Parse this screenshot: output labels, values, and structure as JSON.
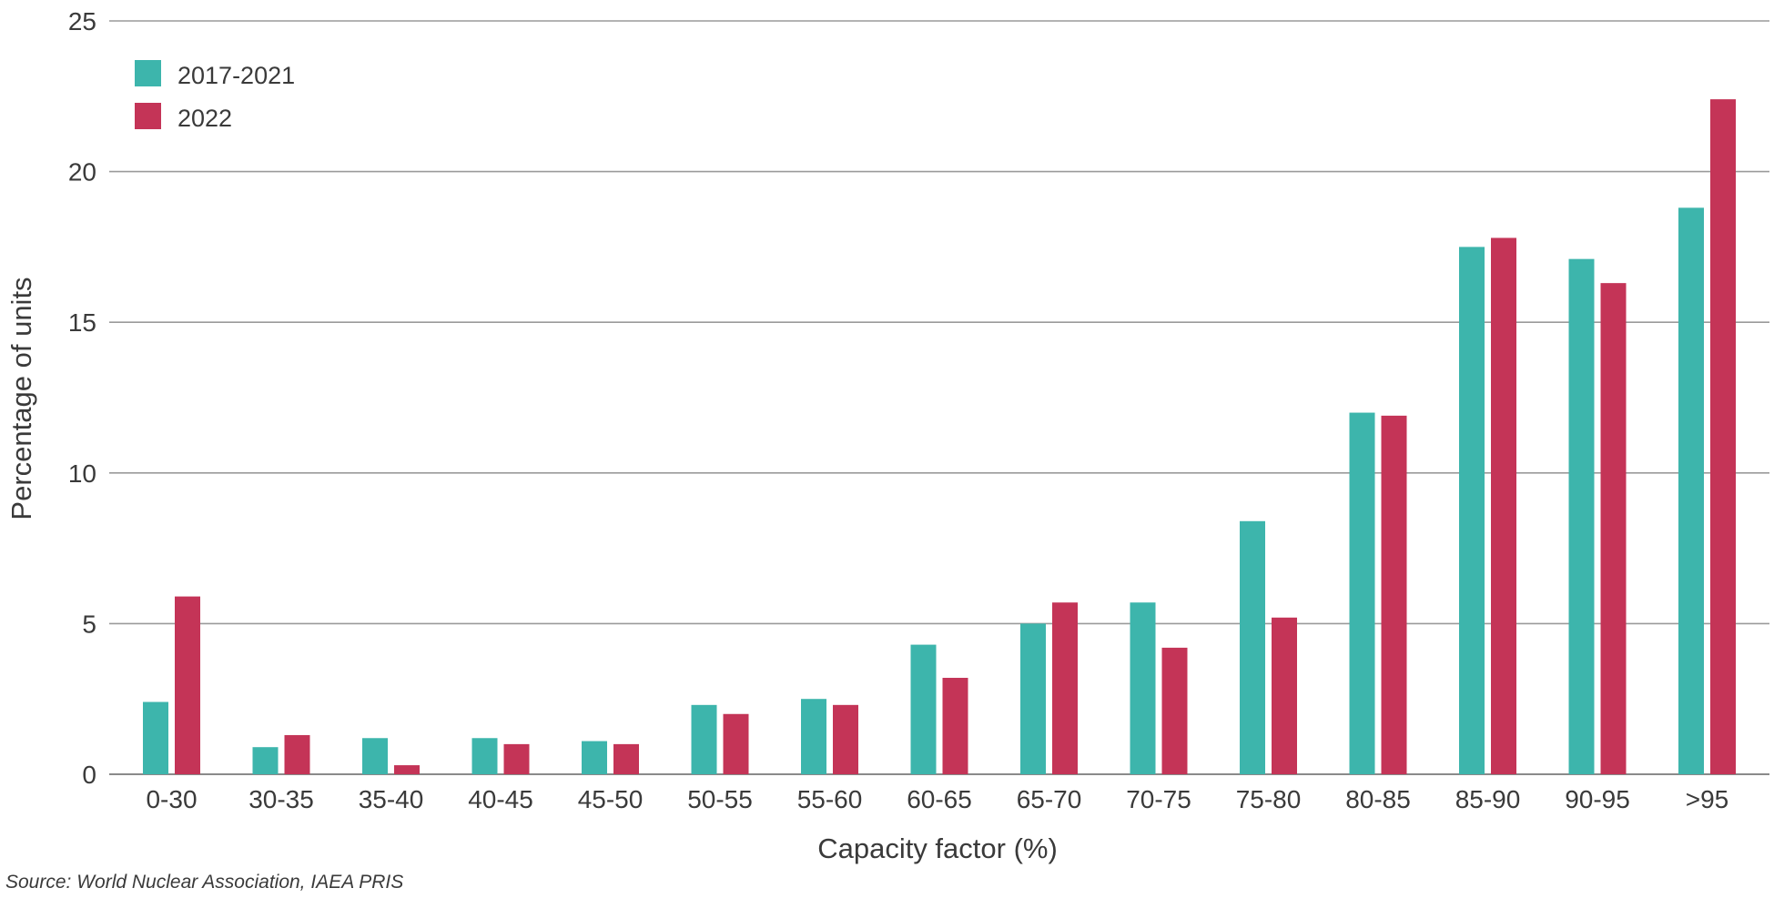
{
  "chart_data": {
    "type": "bar",
    "title": "",
    "xlabel": "Capacity factor (%)",
    "ylabel": "Percentage of units",
    "ylim": [
      0,
      25
    ],
    "yticks": [
      0,
      5,
      10,
      15,
      20,
      25
    ],
    "grid": true,
    "legend_position": "top-left",
    "categories": [
      "0-30",
      "30-35",
      "35-40",
      "40-45",
      "45-50",
      "50-55",
      "55-60",
      "60-65",
      "65-70",
      "70-75",
      "75-80",
      "80-85",
      "85-90",
      "90-95",
      ">95"
    ],
    "series": [
      {
        "name": "2017-2021",
        "color": "#3db5ac",
        "values": [
          2.4,
          0.9,
          1.2,
          1.2,
          1.1,
          2.3,
          2.5,
          4.3,
          5.0,
          5.7,
          8.4,
          12.0,
          17.5,
          17.1,
          18.8
        ]
      },
      {
        "name": "2022",
        "color": "#c43457",
        "values": [
          5.9,
          1.3,
          0.3,
          1.0,
          1.0,
          2.0,
          2.3,
          3.2,
          5.7,
          4.2,
          5.2,
          11.9,
          17.8,
          16.3,
          22.4
        ]
      }
    ]
  },
  "footer": {
    "source": "Source: World Nuclear Association, IAEA PRIS"
  }
}
